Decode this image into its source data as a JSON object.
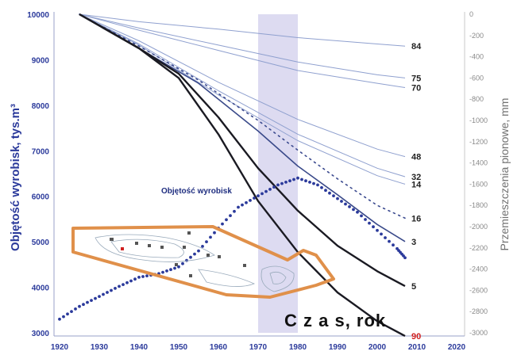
{
  "chart_data": {
    "type": "line",
    "x_title": "C z a s,  rok",
    "y_left_title": "Objętość wyrobisk,  tys.m³",
    "y_right_title": "Przemieszczenia pionowe, mm",
    "annotation": "Objętość wyrobisk",
    "x_ticks": [
      "1920",
      "1930",
      "1940",
      "1950",
      "1960",
      "1970",
      "1980",
      "1990",
      "2000",
      "2010",
      "2020"
    ],
    "y_left_ticks": [
      "3000",
      "4000",
      "5000",
      "6000",
      "7000",
      "8000",
      "9000",
      "10000"
    ],
    "y_right_ticks": [
      "0",
      "-200",
      "-400",
      "-600",
      "-800",
      "-1000",
      "-1200",
      "-1400",
      "-1600",
      "-1800",
      "-2000",
      "-2200",
      "-2400",
      "-2600",
      "-2800",
      "-3000"
    ],
    "xlim": [
      1920,
      2020
    ],
    "ylim_left": [
      3000,
      10000
    ],
    "ylim_right": [
      -3000,
      0
    ],
    "highlight_band": [
      1970,
      1980
    ],
    "colors": {
      "volume": "#2b3a9b",
      "highlight": "#b4b0e0",
      "inset_outline": "#e0904a",
      "red_label": "#d02020"
    },
    "volume_series": {
      "name": "Objętość wyrobisk",
      "x": [
        1920,
        1925,
        1930,
        1935,
        1940,
        1945,
        1950,
        1955,
        1960,
        1965,
        1970,
        1975,
        1980,
        1985,
        1990,
        1995,
        2000,
        2005,
        2007
      ],
      "y": [
        3300,
        3580,
        3800,
        4020,
        4220,
        4300,
        4450,
        4800,
        5300,
        5760,
        6010,
        6250,
        6400,
        6250,
        5950,
        5650,
        5250,
        4850,
        4650
      ]
    },
    "subsidence_series": [
      {
        "name": "84",
        "style": "thin",
        "x": [
          1925,
          1940,
          1960,
          1980,
          2000,
          2007
        ],
        "y": [
          0,
          -70,
          -140,
          -220,
          -280,
          -300
        ]
      },
      {
        "name": "75",
        "style": "thin",
        "x": [
          1925,
          1940,
          1960,
          1980,
          2000,
          2007
        ],
        "y": [
          0,
          -130,
          -290,
          -450,
          -570,
          -600
        ]
      },
      {
        "name": "70",
        "style": "thin",
        "x": [
          1925,
          1940,
          1960,
          1980,
          2000,
          2007
        ],
        "y": [
          0,
          -150,
          -340,
          -530,
          -650,
          -690
        ]
      },
      {
        "name": "48",
        "style": "thin",
        "x": [
          1925,
          1940,
          1960,
          1980,
          2000,
          2007
        ],
        "y": [
          0,
          -250,
          -640,
          -990,
          -1270,
          -1340
        ]
      },
      {
        "name": "32",
        "style": "thin",
        "x": [
          1925,
          1940,
          1960,
          1980,
          2000,
          2007
        ],
        "y": [
          0,
          -280,
          -720,
          -1130,
          -1450,
          -1530
        ]
      },
      {
        "name": "14",
        "style": "thin",
        "x": [
          1925,
          1940,
          1960,
          1980,
          2000,
          2007
        ],
        "y": [
          0,
          -290,
          -760,
          -1190,
          -1520,
          -1600
        ]
      },
      {
        "name": "16",
        "style": "dotted",
        "x": [
          1925,
          1940,
          1955,
          1970,
          1980,
          1990,
          2000,
          2007
        ],
        "y": [
          0,
          -300,
          -620,
          -1000,
          -1280,
          -1550,
          -1800,
          -1920
        ]
      },
      {
        "name": "3",
        "style": "medium",
        "x": [
          1925,
          1940,
          1955,
          1970,
          1980,
          1990,
          2000,
          2007
        ],
        "y": [
          0,
          -320,
          -650,
          -1100,
          -1430,
          -1700,
          -1980,
          -2140
        ]
      },
      {
        "name": "5",
        "style": "thick",
        "x": [
          1925,
          1940,
          1950,
          1960,
          1970,
          1980,
          1990,
          2000,
          2007
        ],
        "y": [
          0,
          -320,
          -560,
          -970,
          -1450,
          -1850,
          -2180,
          -2420,
          -2560
        ]
      },
      {
        "name": "90",
        "style": "thick",
        "x": [
          1925,
          1940,
          1950,
          1960,
          1970,
          1980,
          1990,
          2000,
          2007
        ],
        "y": [
          0,
          -320,
          -600,
          -1130,
          -1760,
          -2240,
          -2620,
          -2890,
          -3030
        ]
      }
    ],
    "grid": false,
    "legend": "none"
  }
}
